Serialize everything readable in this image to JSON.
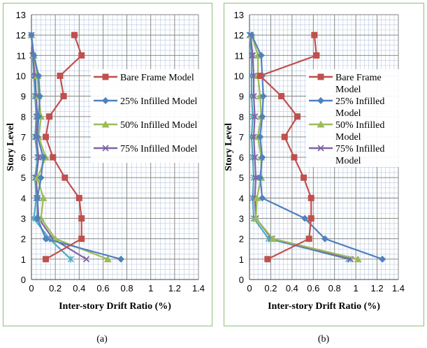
{
  "captions": [
    "(a)",
    "(b)"
  ],
  "colors": {
    "bare": "#c0504d",
    "infill25": "#4f81bd",
    "infill50": "#9bbb59",
    "infill75": "#8064a2",
    "gridMajor": "#7f7f7f",
    "gridMinor": "#b8c8e0",
    "frame": "#8dbf7a"
  },
  "chart_data": [
    {
      "type": "line",
      "xlabel": "Inter-story Drift Ratio (%)",
      "ylabel": "Story Level",
      "xlim": [
        0,
        1.4
      ],
      "ylim": [
        0,
        13
      ],
      "xticks": [
        "0",
        "0.2",
        "0.4",
        "0.6",
        "0.8",
        "1",
        "1.2",
        "1.4"
      ],
      "yticks": [
        "0",
        "1",
        "2",
        "3",
        "4",
        "5",
        "6",
        "7",
        "8",
        "9",
        "10",
        "11",
        "12",
        "13"
      ],
      "grid": true,
      "legend_position": "right",
      "series": [
        {
          "name": "Bare Frame Model",
          "marker": "square",
          "color": "#c0504d",
          "x": [
            0.12,
            0.42,
            0.42,
            0.4,
            0.28,
            0.18,
            0.12,
            0.15,
            0.27,
            0.24,
            0.42,
            0.36
          ],
          "y": [
            1,
            2,
            3,
            4,
            5,
            6,
            7,
            8,
            9,
            10,
            11,
            12
          ]
        },
        {
          "name": "25% Infilled Model",
          "marker": "diamond",
          "color": "#4f81bd",
          "x": [
            0.75,
            0.12,
            0.05,
            0.05,
            0.08,
            0.1,
            0.05,
            0.06,
            0.07,
            0.06,
            0.02,
            0.0
          ],
          "y": [
            1,
            2,
            3,
            4,
            5,
            6,
            7,
            8,
            9,
            10,
            11,
            12
          ]
        },
        {
          "name": "50% Infilled Model",
          "marker": "triangle",
          "color": "#9bbb59",
          "x": [
            0.64,
            0.2,
            0.08,
            0.1,
            0.05,
            0.12,
            0.06,
            0.08,
            0.06,
            0.05,
            0.02,
            0.0
          ],
          "y": [
            1,
            2,
            3,
            4,
            5,
            6,
            7,
            8,
            9,
            10,
            11,
            12
          ]
        },
        {
          "name": "75% Infilled Model",
          "marker": "x",
          "color": "#8064a2",
          "x": [
            0.46,
            0.18,
            0.06,
            0.05,
            0.04,
            0.06,
            0.04,
            0.05,
            0.04,
            0.03,
            0.01,
            0.0
          ],
          "y": [
            1,
            2,
            3,
            4,
            5,
            6,
            7,
            8,
            9,
            10,
            11,
            12
          ]
        },
        {
          "name": "",
          "marker": "star",
          "color": "#4bacc6",
          "x": [
            0.33,
            0.15,
            0.02,
            0.04,
            0.03,
            0.05,
            0.03,
            0.04,
            0.03,
            0.02,
            0.01,
            0.0
          ],
          "y": [
            1,
            2,
            3,
            4,
            5,
            6,
            7,
            8,
            9,
            10,
            11,
            12
          ]
        }
      ]
    },
    {
      "type": "line",
      "xlabel": "Inter-story Drift Ratio (%)",
      "ylabel": "Story Level",
      "xlim": [
        0,
        1.4
      ],
      "ylim": [
        0,
        13
      ],
      "xticks": [
        "0",
        "0.2",
        "0.4",
        "0.6",
        "0.8",
        "1",
        "1.2",
        "1.4"
      ],
      "yticks": [
        "0",
        "1",
        "2",
        "3",
        "4",
        "5",
        "6",
        "7",
        "8",
        "9",
        "10",
        "11",
        "12",
        "13"
      ],
      "grid": true,
      "legend_position": "right",
      "series": [
        {
          "name": "Bare Frame Model",
          "marker": "square",
          "color": "#c0504d",
          "x": [
            0.17,
            0.56,
            0.58,
            0.58,
            0.51,
            0.42,
            0.33,
            0.45,
            0.3,
            0.1,
            0.63,
            0.61
          ],
          "y": [
            1,
            2,
            3,
            4,
            5,
            6,
            7,
            8,
            9,
            10,
            11,
            12
          ]
        },
        {
          "name": "25% Infilled Model",
          "marker": "diamond",
          "color": "#4f81bd",
          "x": [
            1.25,
            0.71,
            0.52,
            0.12,
            0.1,
            0.12,
            0.1,
            0.12,
            0.13,
            0.12,
            0.11,
            0.02
          ],
          "y": [
            1,
            2,
            3,
            4,
            5,
            6,
            7,
            8,
            9,
            10,
            11,
            12
          ]
        },
        {
          "name": "50% Infilled Model",
          "marker": "triangle",
          "color": "#9bbb59",
          "x": [
            1.02,
            0.22,
            0.06,
            0.07,
            0.11,
            0.11,
            0.08,
            0.11,
            0.1,
            0.08,
            0.08,
            0.02
          ],
          "y": [
            1,
            2,
            3,
            4,
            5,
            6,
            7,
            8,
            9,
            10,
            11,
            12
          ]
        },
        {
          "name": "75% Infilled Model",
          "marker": "x",
          "color": "#8064a2",
          "x": [
            0.95,
            0.21,
            0.06,
            0.05,
            0.06,
            0.05,
            0.04,
            0.05,
            0.04,
            0.04,
            0.03,
            0.01
          ],
          "y": [
            1,
            2,
            3,
            4,
            5,
            6,
            7,
            8,
            9,
            10,
            11,
            12
          ]
        },
        {
          "name": "",
          "marker": "star",
          "color": "#4bacc6",
          "x": [
            0.93,
            0.18,
            0.04,
            0.03,
            0.04,
            0.03,
            0.02,
            0.03,
            0.02,
            0.02,
            0.02,
            0.0
          ],
          "y": [
            1,
            2,
            3,
            4,
            5,
            6,
            7,
            8,
            9,
            10,
            11,
            12
          ]
        }
      ]
    }
  ]
}
